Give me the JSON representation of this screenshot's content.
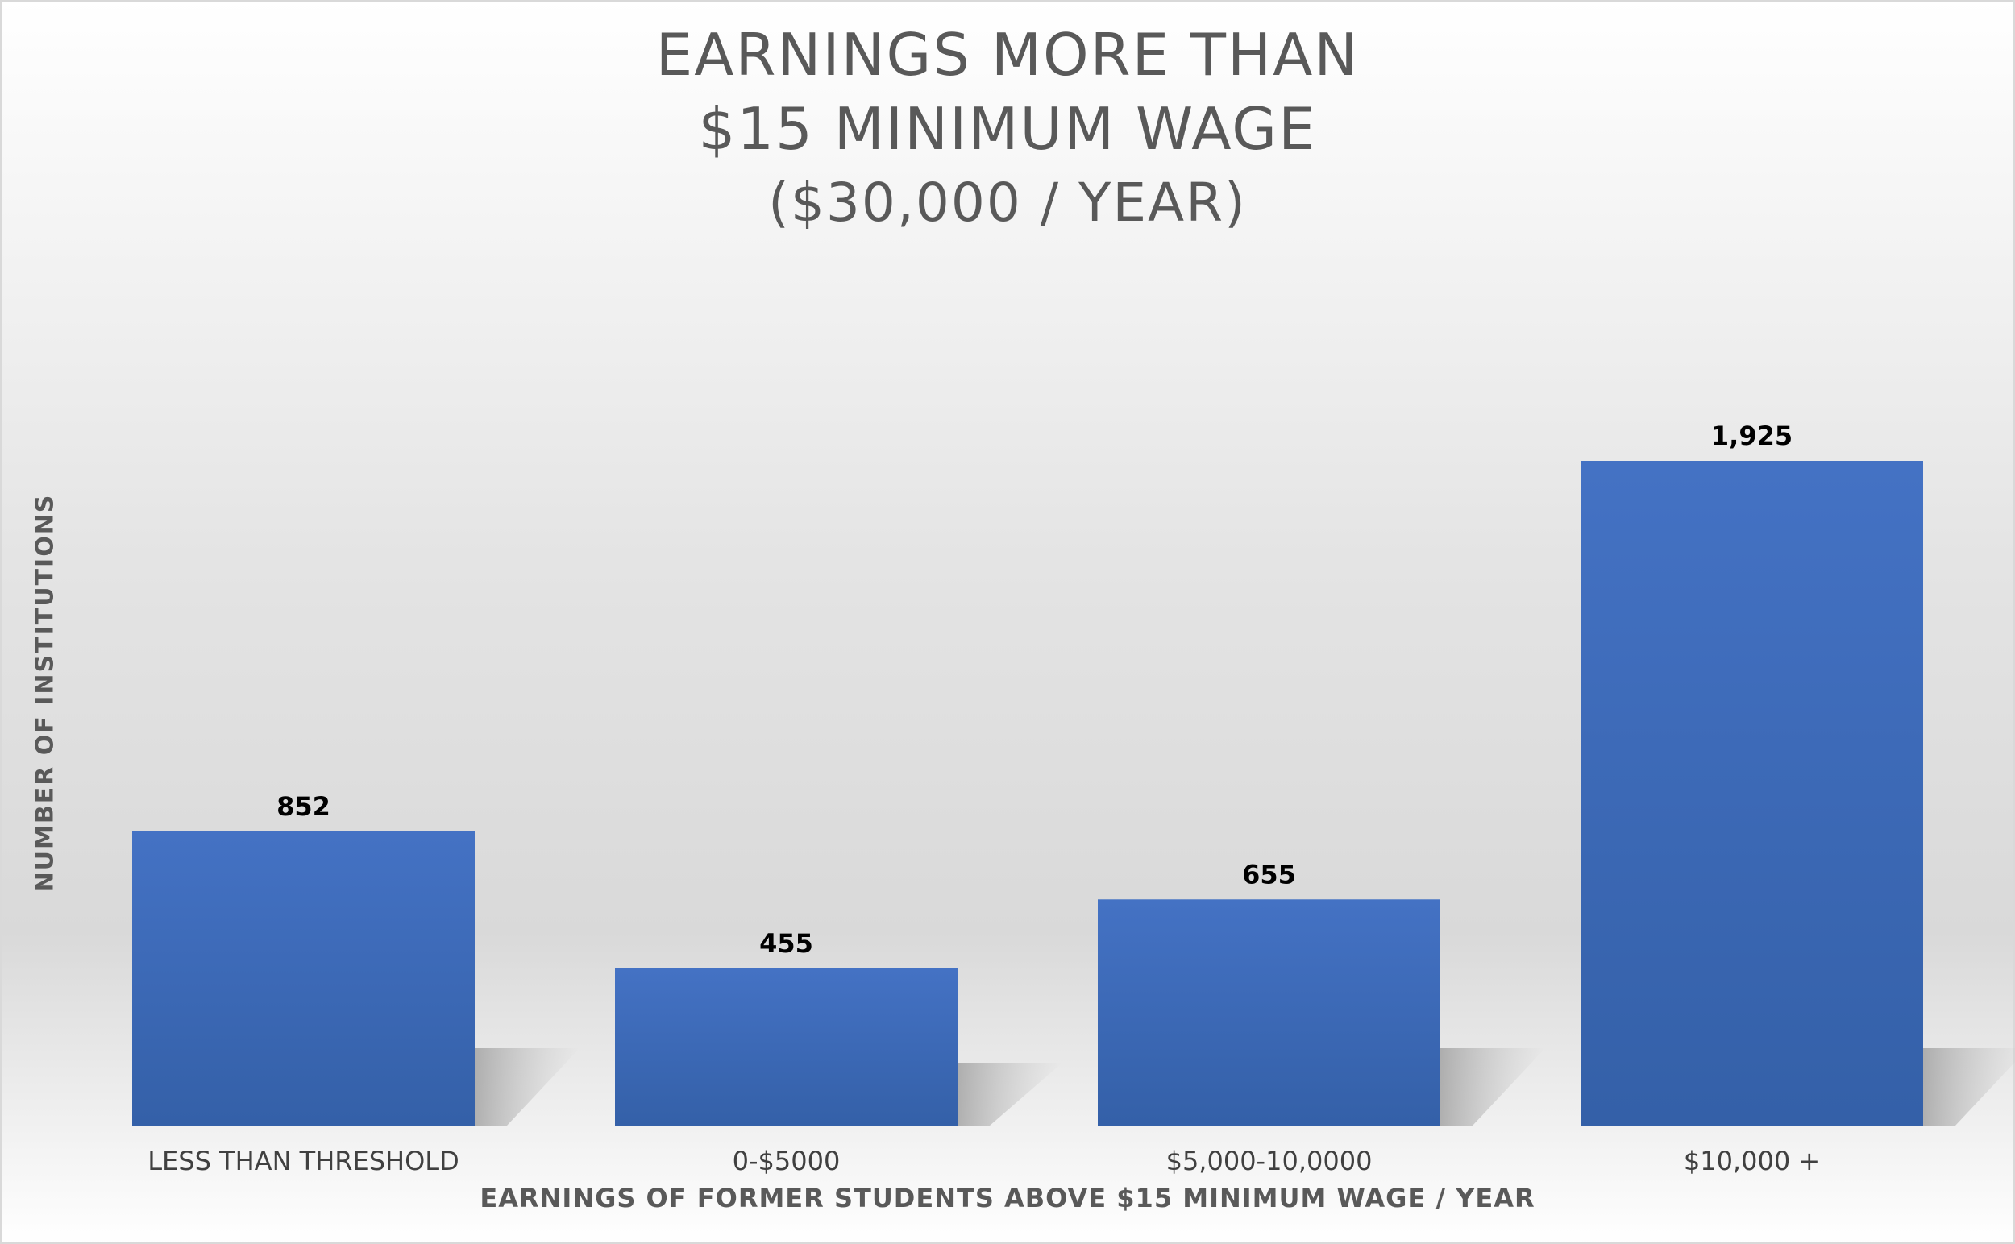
{
  "chart_data": {
    "type": "bar",
    "title": [
      "EARNINGS MORE THAN",
      "$15 MINIMUM WAGE",
      "($30,000 / YEAR)"
    ],
    "categories": [
      "LESS THAN THRESHOLD",
      "0-$5000",
      "$5,000-10,0000",
      "$10,000 +"
    ],
    "values": [
      852,
      455,
      655,
      1925
    ],
    "data_labels": [
      "852",
      "455",
      "655",
      "1,925"
    ],
    "xlabel": "EARNINGS OF FORMER STUDENTS ABOVE $15 MINIMUM WAGE / YEAR",
    "ylabel": "NUMBER OF INSTITUTIONS",
    "ylim": [
      0,
      1925
    ],
    "grid": false,
    "legend": "none",
    "bar_color_top": "#4472c4",
    "bar_color_bottom": "#3460a8"
  }
}
